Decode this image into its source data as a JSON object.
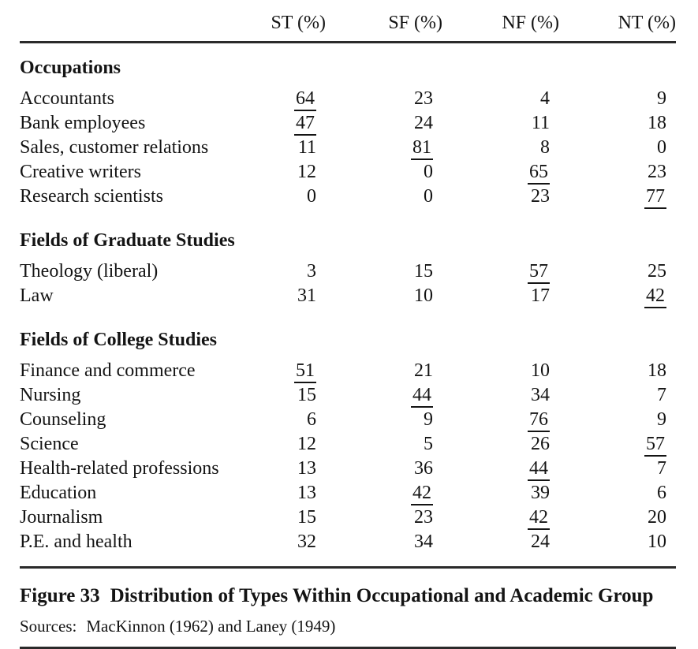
{
  "page": {
    "columns": [
      "ST (%)",
      "SF (%)",
      "NF (%)",
      "NT (%)"
    ],
    "sections": [
      {
        "title": "Occupations",
        "rows": [
          {
            "label": "Accountants",
            "values": [
              "64",
              "23",
              "4",
              "9"
            ],
            "underline": 0
          },
          {
            "label": "Bank employees",
            "values": [
              "47",
              "24",
              "11",
              "18"
            ],
            "underline": 0
          },
          {
            "label": "Sales, customer relations",
            "values": [
              "11",
              "81",
              "8",
              "0"
            ],
            "underline": 1
          },
          {
            "label": "Creative writers",
            "values": [
              "12",
              "0",
              "65",
              "23"
            ],
            "underline": 2
          },
          {
            "label": "Research scientists",
            "values": [
              "0",
              "0",
              "23",
              "77"
            ],
            "underline": 3
          }
        ]
      },
      {
        "title": "Fields of Graduate Studies",
        "rows": [
          {
            "label": "Theology (liberal)",
            "values": [
              "3",
              "15",
              "57",
              "25"
            ],
            "underline": 2
          },
          {
            "label": "Law",
            "values": [
              "31",
              "10",
              "17",
              "42"
            ],
            "underline": 3
          }
        ]
      },
      {
        "title": "Fields of College Studies",
        "rows": [
          {
            "label": "Finance and commerce",
            "values": [
              "51",
              "21",
              "10",
              "18"
            ],
            "underline": 0
          },
          {
            "label": "Nursing",
            "values": [
              "15",
              "44",
              "34",
              "7"
            ],
            "underline": 1
          },
          {
            "label": "Counseling",
            "values": [
              "6",
              "9",
              "76",
              "9"
            ],
            "underline": 2
          },
          {
            "label": "Science",
            "values": [
              "12",
              "5",
              "26",
              "57"
            ],
            "underline": 3
          },
          {
            "label": "Health-related professions",
            "values": [
              "13",
              "36",
              "44",
              "7"
            ],
            "underline": 2
          },
          {
            "label": "Education",
            "values": [
              "13",
              "42",
              "39",
              "6"
            ],
            "underline": 1
          },
          {
            "label": "Journalism",
            "values": [
              "15",
              "23",
              "42",
              "20"
            ],
            "underline": 2
          },
          {
            "label": "P.E. and health",
            "values": [
              "32",
              "34",
              "24",
              "10"
            ],
            "underline": null
          }
        ]
      }
    ],
    "caption": {
      "label": "Figure 33",
      "text": "Distribution of Types Within Occupational and Academic Group"
    },
    "sources": {
      "label": "Sources:",
      "text": "MacKinnon (1962) and Laney (1949)"
    },
    "colors": {
      "text": "#141414",
      "rule": "#2a2a2a",
      "background": "#ffffff"
    }
  }
}
